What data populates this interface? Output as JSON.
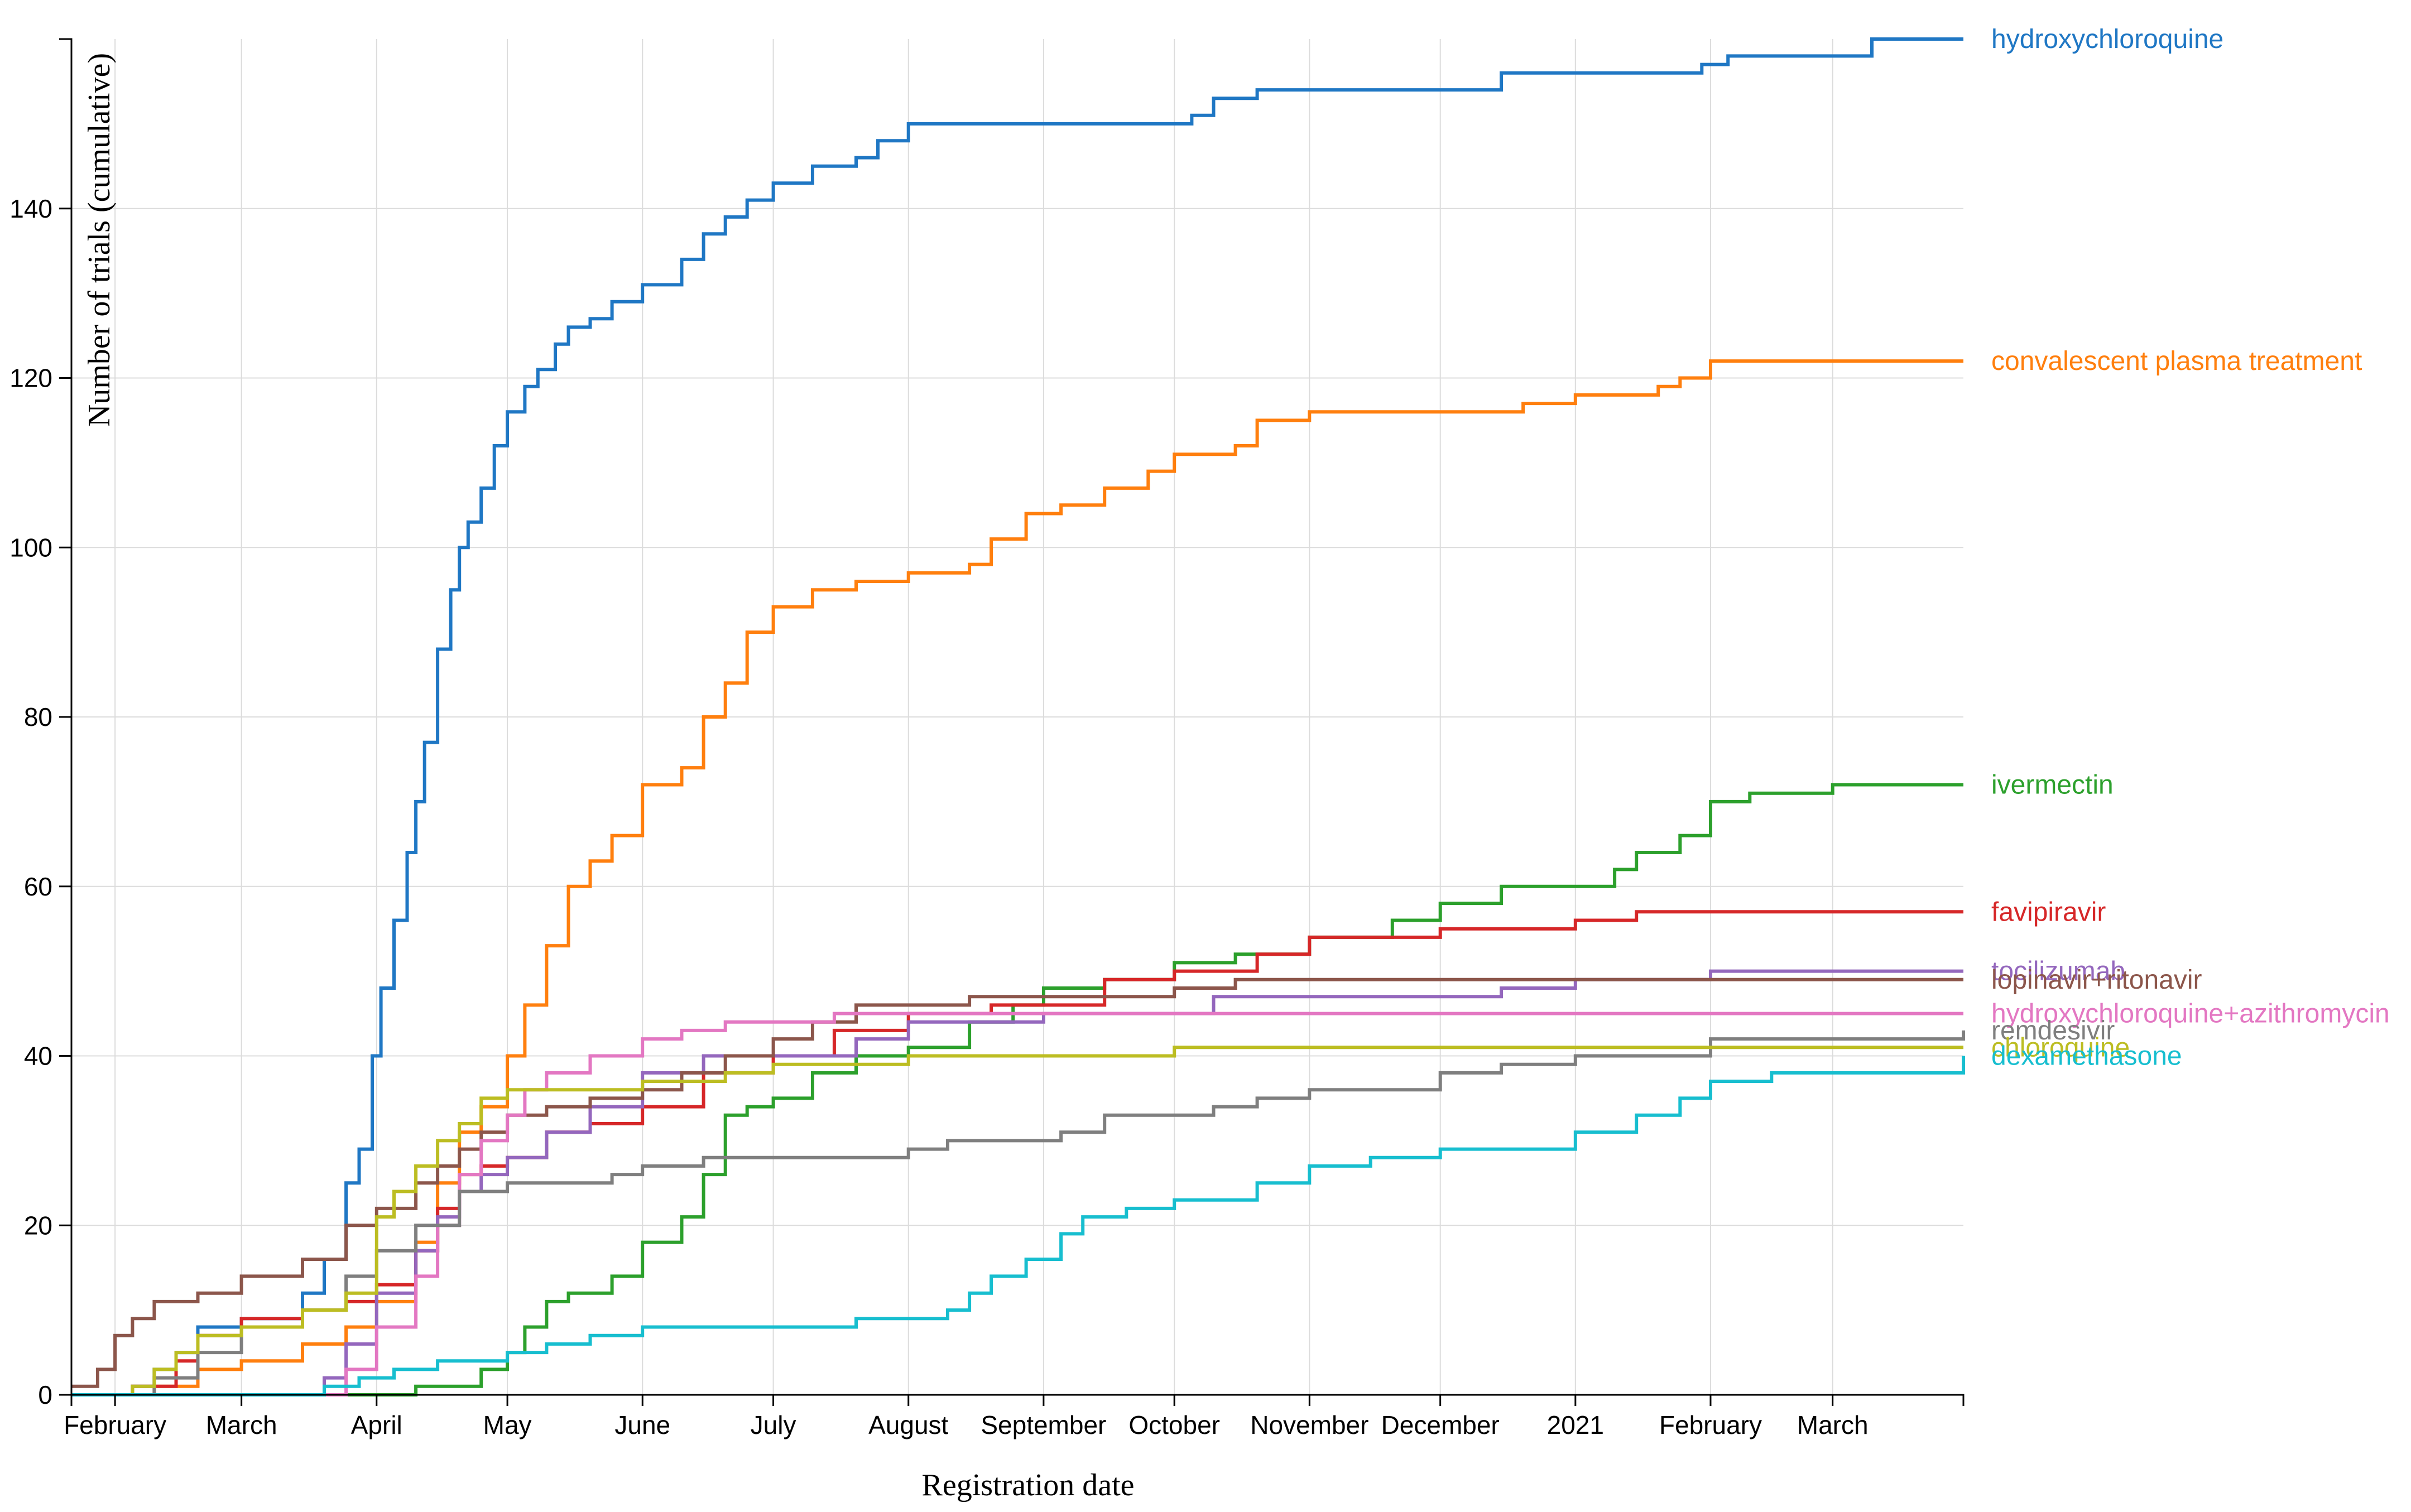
{
  "chart_data": {
    "type": "line",
    "title": "",
    "xlabel": "Registration date",
    "ylabel": "Number of trials (cumulative)",
    "grid": true,
    "ylim": [
      0,
      160
    ],
    "xlim": [
      "2020-01-22",
      "2021-03-31"
    ],
    "y_ticks": [
      0,
      20,
      40,
      60,
      80,
      100,
      120,
      140
    ],
    "x_ticks": [
      {
        "date": "2020-02-01",
        "label": "February"
      },
      {
        "date": "2020-03-01",
        "label": "March"
      },
      {
        "date": "2020-04-01",
        "label": "April"
      },
      {
        "date": "2020-05-01",
        "label": "May"
      },
      {
        "date": "2020-06-01",
        "label": "June"
      },
      {
        "date": "2020-07-01",
        "label": "July"
      },
      {
        "date": "2020-08-01",
        "label": "August"
      },
      {
        "date": "2020-09-01",
        "label": "September"
      },
      {
        "date": "2020-10-01",
        "label": "October"
      },
      {
        "date": "2020-11-01",
        "label": "November"
      },
      {
        "date": "2020-12-01",
        "label": "December"
      },
      {
        "date": "2021-01-01",
        "label": "2021"
      },
      {
        "date": "2021-02-01",
        "label": "February"
      },
      {
        "date": "2021-03-01",
        "label": "March"
      }
    ],
    "series": [
      {
        "name": "hydroxychloroquine",
        "color": "#1f77c4",
        "x": [
          "2020-01-22",
          "2020-02-05",
          "2020-02-10",
          "2020-02-15",
          "2020-02-20",
          "2020-03-01",
          "2020-03-15",
          "2020-03-20",
          "2020-03-25",
          "2020-03-28",
          "2020-03-31",
          "2020-04-02",
          "2020-04-05",
          "2020-04-08",
          "2020-04-10",
          "2020-04-12",
          "2020-04-15",
          "2020-04-18",
          "2020-04-20",
          "2020-04-22",
          "2020-04-25",
          "2020-04-28",
          "2020-05-01",
          "2020-05-05",
          "2020-05-08",
          "2020-05-12",
          "2020-05-15",
          "2020-05-20",
          "2020-05-25",
          "2020-06-01",
          "2020-06-10",
          "2020-06-15",
          "2020-06-20",
          "2020-06-25",
          "2020-07-01",
          "2020-07-10",
          "2020-07-20",
          "2020-07-25",
          "2020-08-01",
          "2020-10-01",
          "2020-10-05",
          "2020-10-10",
          "2020-10-20",
          "2020-12-15",
          "2021-01-30",
          "2021-02-05",
          "2021-03-10",
          "2021-03-31"
        ],
        "y": [
          0,
          1,
          3,
          5,
          8,
          9,
          12,
          16,
          25,
          29,
          40,
          48,
          56,
          64,
          70,
          77,
          88,
          95,
          100,
          103,
          107,
          112,
          116,
          119,
          121,
          124,
          126,
          127,
          129,
          131,
          134,
          137,
          139,
          141,
          143,
          145,
          146,
          148,
          150,
          150,
          151,
          153,
          154,
          156,
          157,
          158,
          160,
          160
        ]
      },
      {
        "name": "convalescent plasma treatment",
        "color": "#ff7f0e",
        "x": [
          "2020-01-22",
          "2020-02-10",
          "2020-02-20",
          "2020-03-01",
          "2020-03-15",
          "2020-03-25",
          "2020-04-01",
          "2020-04-10",
          "2020-04-15",
          "2020-04-20",
          "2020-04-25",
          "2020-05-01",
          "2020-05-05",
          "2020-05-10",
          "2020-05-15",
          "2020-05-20",
          "2020-05-25",
          "2020-06-01",
          "2020-06-10",
          "2020-06-15",
          "2020-06-20",
          "2020-06-25",
          "2020-07-01",
          "2020-07-10",
          "2020-07-20",
          "2020-08-01",
          "2020-08-15",
          "2020-08-20",
          "2020-08-28",
          "2020-09-05",
          "2020-09-15",
          "2020-09-25",
          "2020-10-01",
          "2020-10-15",
          "2020-10-20",
          "2020-11-01",
          "2020-12-01",
          "2020-12-20",
          "2021-01-01",
          "2021-01-20",
          "2021-01-25",
          "2021-02-01",
          "2021-03-31"
        ],
        "y": [
          0,
          1,
          3,
          4,
          6,
          8,
          11,
          18,
          25,
          31,
          34,
          40,
          46,
          53,
          60,
          63,
          66,
          72,
          74,
          80,
          84,
          90,
          93,
          95,
          96,
          97,
          98,
          101,
          104,
          105,
          107,
          109,
          111,
          112,
          115,
          116,
          116,
          117,
          118,
          119,
          120,
          122,
          122
        ]
      },
      {
        "name": "ivermectin",
        "color": "#2ca02c",
        "x": [
          "2020-01-22",
          "2020-04-10",
          "2020-04-25",
          "2020-05-01",
          "2020-05-05",
          "2020-05-10",
          "2020-05-15",
          "2020-05-25",
          "2020-06-01",
          "2020-06-10",
          "2020-06-15",
          "2020-06-20",
          "2020-06-25",
          "2020-07-01",
          "2020-07-10",
          "2020-07-20",
          "2020-08-01",
          "2020-08-15",
          "2020-08-25",
          "2020-09-01",
          "2020-09-15",
          "2020-10-01",
          "2020-10-15",
          "2020-11-01",
          "2020-11-20",
          "2020-12-01",
          "2020-12-15",
          "2021-01-01",
          "2021-01-10",
          "2021-01-15",
          "2021-01-25",
          "2021-02-01",
          "2021-02-10",
          "2021-03-01",
          "2021-03-31"
        ],
        "y": [
          0,
          1,
          3,
          5,
          8,
          11,
          12,
          14,
          18,
          21,
          26,
          33,
          34,
          35,
          38,
          40,
          41,
          44,
          46,
          48,
          49,
          51,
          52,
          54,
          56,
          58,
          60,
          60,
          62,
          64,
          66,
          70,
          71,
          72,
          72
        ]
      },
      {
        "name": "favipiravir",
        "color": "#d62728",
        "x": [
          "2020-01-22",
          "2020-02-05",
          "2020-02-15",
          "2020-02-20",
          "2020-03-01",
          "2020-03-15",
          "2020-03-25",
          "2020-04-01",
          "2020-04-10",
          "2020-04-15",
          "2020-04-20",
          "2020-04-25",
          "2020-05-01",
          "2020-05-10",
          "2020-05-20",
          "2020-06-01",
          "2020-06-15",
          "2020-07-01",
          "2020-07-15",
          "2020-08-01",
          "2020-08-20",
          "2020-09-15",
          "2020-10-01",
          "2020-10-20",
          "2020-11-01",
          "2020-12-01",
          "2021-01-01",
          "2021-01-15",
          "2021-03-31"
        ],
        "y": [
          0,
          1,
          4,
          7,
          9,
          10,
          11,
          13,
          17,
          22,
          26,
          27,
          28,
          31,
          32,
          34,
          38,
          40,
          43,
          45,
          46,
          49,
          50,
          52,
          54,
          55,
          56,
          57,
          57
        ]
      },
      {
        "name": "tocilizumab",
        "color": "#9467bd",
        "x": [
          "2020-01-22",
          "2020-03-20",
          "2020-03-25",
          "2020-04-01",
          "2020-04-10",
          "2020-04-15",
          "2020-04-20",
          "2020-04-25",
          "2020-05-01",
          "2020-05-10",
          "2020-05-20",
          "2020-06-01",
          "2020-06-15",
          "2020-07-01",
          "2020-07-20",
          "2020-08-01",
          "2020-09-01",
          "2020-10-01",
          "2020-10-10",
          "2020-12-15",
          "2021-01-01",
          "2021-02-01",
          "2021-03-31"
        ],
        "y": [
          0,
          2,
          6,
          12,
          17,
          21,
          24,
          26,
          28,
          31,
          34,
          38,
          40,
          40,
          42,
          44,
          45,
          45,
          47,
          48,
          49,
          50,
          50
        ]
      },
      {
        "name": "lopinavir+ritonavir",
        "color": "#8c564b",
        "x": [
          "2020-01-22",
          "2020-01-28",
          "2020-02-01",
          "2020-02-05",
          "2020-02-10",
          "2020-02-20",
          "2020-03-01",
          "2020-03-15",
          "2020-03-25",
          "2020-04-01",
          "2020-04-10",
          "2020-04-15",
          "2020-04-20",
          "2020-04-25",
          "2020-05-01",
          "2020-05-10",
          "2020-05-20",
          "2020-06-01",
          "2020-06-10",
          "2020-06-20",
          "2020-07-01",
          "2020-07-10",
          "2020-07-20",
          "2020-08-01",
          "2020-08-15",
          "2020-09-01",
          "2020-10-01",
          "2020-10-15",
          "2020-11-01",
          "2021-03-31"
        ],
        "y": [
          1,
          3,
          7,
          9,
          11,
          12,
          14,
          16,
          20,
          22,
          25,
          27,
          29,
          31,
          33,
          34,
          35,
          36,
          38,
          40,
          42,
          44,
          46,
          46,
          47,
          47,
          48,
          49,
          49,
          49
        ]
      },
      {
        "name": "hydroxychloroquine+azithromycin",
        "color": "#e377c2",
        "x": [
          "2020-01-22",
          "2020-03-25",
          "2020-04-01",
          "2020-04-10",
          "2020-04-15",
          "2020-04-20",
          "2020-04-25",
          "2020-05-01",
          "2020-05-05",
          "2020-05-10",
          "2020-05-20",
          "2020-06-01",
          "2020-06-10",
          "2020-06-20",
          "2020-07-01",
          "2020-07-15",
          "2020-08-01",
          "2021-03-31"
        ],
        "y": [
          0,
          3,
          8,
          14,
          20,
          26,
          30,
          33,
          36,
          38,
          40,
          42,
          43,
          44,
          44,
          45,
          45,
          45
        ]
      },
      {
        "name": "remdesivir",
        "color": "#7f7f7f",
        "x": [
          "2020-01-22",
          "2020-02-10",
          "2020-02-20",
          "2020-03-01",
          "2020-03-15",
          "2020-03-25",
          "2020-04-01",
          "2020-04-10",
          "2020-04-20",
          "2020-05-01",
          "2020-05-15",
          "2020-05-25",
          "2020-06-01",
          "2020-06-15",
          "2020-07-01",
          "2020-07-25",
          "2020-08-01",
          "2020-08-10",
          "2020-09-05",
          "2020-09-15",
          "2020-10-01",
          "2020-10-10",
          "2020-10-20",
          "2020-11-01",
          "2020-11-15",
          "2020-12-01",
          "2020-12-15",
          "2021-01-01",
          "2021-02-01",
          "2021-03-31"
        ],
        "y": [
          0,
          2,
          5,
          8,
          10,
          14,
          17,
          20,
          24,
          25,
          25,
          26,
          27,
          28,
          28,
          28,
          29,
          30,
          31,
          33,
          33,
          34,
          35,
          36,
          36,
          38,
          39,
          40,
          42,
          43
        ]
      },
      {
        "name": "chloroquine",
        "color": "#bcbd22",
        "x": [
          "2020-01-22",
          "2020-02-05",
          "2020-02-10",
          "2020-02-15",
          "2020-02-20",
          "2020-03-01",
          "2020-03-15",
          "2020-03-25",
          "2020-04-01",
          "2020-04-05",
          "2020-04-10",
          "2020-04-15",
          "2020-04-20",
          "2020-04-25",
          "2020-05-01",
          "2020-05-20",
          "2020-06-01",
          "2020-06-20",
          "2020-07-01",
          "2020-07-15",
          "2020-08-01",
          "2020-09-01",
          "2020-10-01",
          "2020-11-01",
          "2021-01-01",
          "2021-03-31"
        ],
        "y": [
          0,
          1,
          3,
          5,
          7,
          8,
          10,
          12,
          21,
          24,
          27,
          30,
          32,
          35,
          36,
          36,
          37,
          38,
          39,
          39,
          40,
          40,
          41,
          41,
          41,
          41
        ]
      },
      {
        "name": "dexamethasone",
        "color": "#17becf",
        "x": [
          "2020-01-22",
          "2020-03-20",
          "2020-03-28",
          "2020-04-05",
          "2020-04-15",
          "2020-05-01",
          "2020-05-10",
          "2020-05-20",
          "2020-06-01",
          "2020-06-15",
          "2020-07-01",
          "2020-07-20",
          "2020-08-01",
          "2020-08-10",
          "2020-08-15",
          "2020-08-20",
          "2020-08-28",
          "2020-09-05",
          "2020-09-10",
          "2020-09-20",
          "2020-10-01",
          "2020-10-20",
          "2020-11-01",
          "2020-11-15",
          "2020-12-01",
          "2021-01-01",
          "2021-01-15",
          "2021-01-25",
          "2021-02-01",
          "2021-02-15",
          "2021-03-31"
        ],
        "y": [
          0,
          1,
          2,
          3,
          4,
          5,
          6,
          7,
          8,
          8,
          8,
          9,
          9,
          10,
          12,
          14,
          16,
          19,
          21,
          22,
          23,
          25,
          27,
          28,
          29,
          31,
          33,
          35,
          37,
          38,
          40
        ]
      }
    ]
  }
}
